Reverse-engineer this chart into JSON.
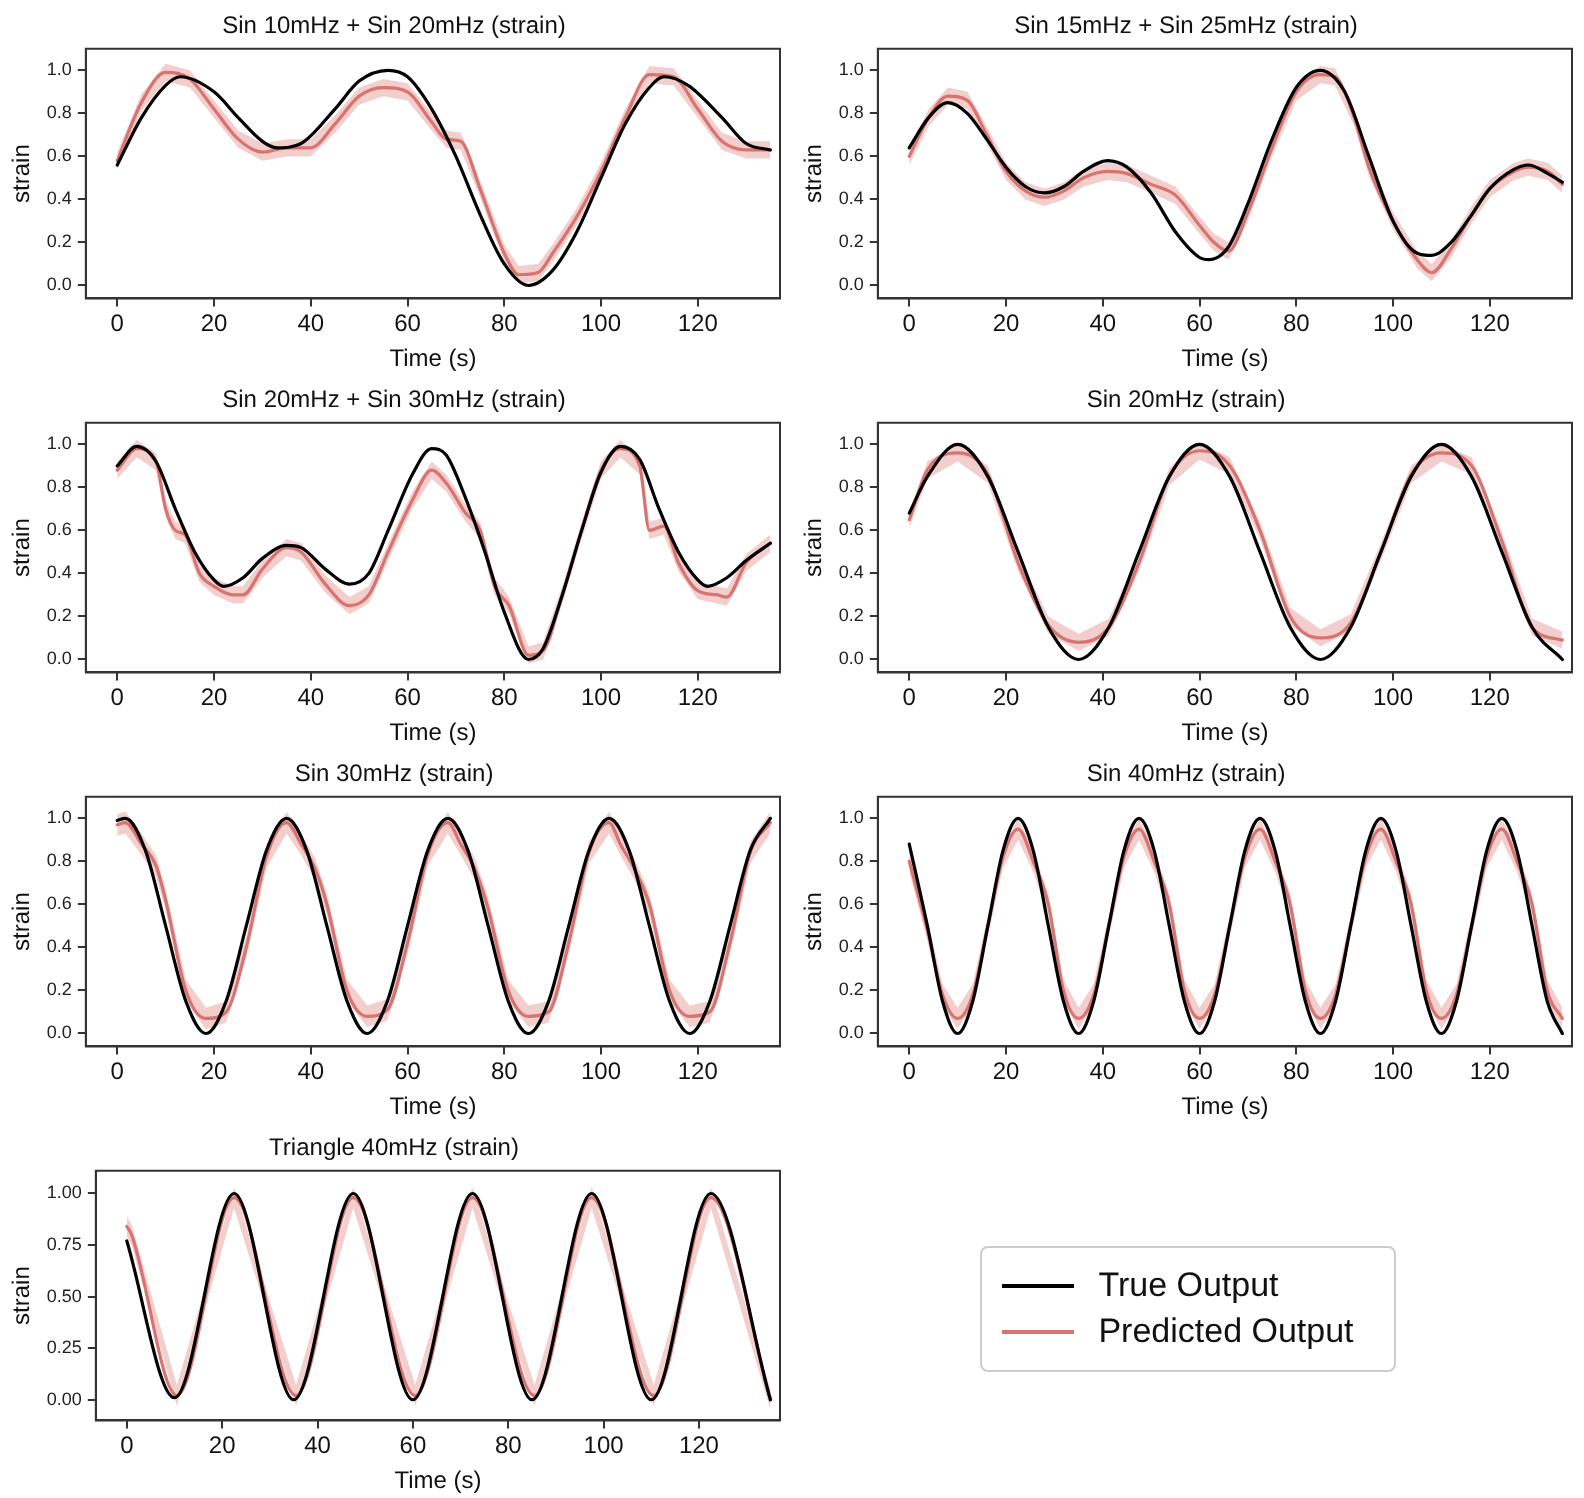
{
  "chart_data": [
    {
      "type": "line",
      "title": "Sin 10mHz + Sin 20mHz (strain)",
      "xlabel": "Time (s)",
      "ylabel": "strain",
      "xlim": [
        -6.5,
        137
      ],
      "ylim": [
        -0.06,
        1.1
      ],
      "xticks": [
        0,
        20,
        40,
        60,
        80,
        100,
        120
      ],
      "yticks": [
        {
          "value": 0,
          "label": "0.0"
        },
        0.2,
        0.4,
        0.6,
        0.8,
        {
          "value": 1,
          "label": "1.0"
        }
      ],
      "series": [
        {
          "color": "#000000",
          "x": [
            0,
            5,
            10,
            13,
            20,
            25,
            30,
            33,
            38,
            45,
            50,
            56,
            60,
            65,
            70,
            75,
            80,
            85,
            90,
            95,
            100,
            105,
            110,
            113,
            118,
            125,
            130,
            135
          ],
          "values": [
            0.56,
            0.78,
            0.93,
            0.97,
            0.9,
            0.78,
            0.67,
            0.64,
            0.66,
            0.82,
            0.95,
            1.0,
            0.97,
            0.82,
            0.6,
            0.33,
            0.1,
            0.0,
            0.07,
            0.25,
            0.5,
            0.75,
            0.92,
            0.97,
            0.93,
            0.78,
            0.66,
            0.63
          ]
        },
        {
          "color": "#d9736f",
          "x": [
            0,
            5,
            10,
            15,
            20,
            25,
            30,
            35,
            40,
            45,
            50,
            55,
            60,
            65,
            68,
            71,
            75,
            80,
            83,
            87,
            90,
            95,
            100,
            105,
            110,
            115,
            120,
            125,
            130,
            135
          ],
          "values": [
            0.58,
            0.85,
            0.99,
            0.96,
            0.82,
            0.68,
            0.62,
            0.64,
            0.64,
            0.75,
            0.88,
            0.92,
            0.9,
            0.76,
            0.68,
            0.67,
            0.45,
            0.15,
            0.05,
            0.06,
            0.15,
            0.32,
            0.53,
            0.78,
            0.98,
            0.97,
            0.82,
            0.67,
            0.63,
            0.63
          ],
          "lower": [
            0.54,
            0.81,
            0.95,
            0.92,
            0.78,
            0.64,
            0.58,
            0.6,
            0.6,
            0.71,
            0.84,
            0.88,
            0.86,
            0.72,
            0.64,
            0.63,
            0.41,
            0.11,
            0.01,
            0.02,
            0.11,
            0.28,
            0.49,
            0.74,
            0.94,
            0.93,
            0.78,
            0.63,
            0.59,
            0.59
          ],
          "upper": [
            0.62,
            0.89,
            1.03,
            1.0,
            0.86,
            0.72,
            0.66,
            0.68,
            0.68,
            0.79,
            0.92,
            0.96,
            0.94,
            0.8,
            0.72,
            0.71,
            0.49,
            0.19,
            0.09,
            0.1,
            0.19,
            0.36,
            0.57,
            0.82,
            1.02,
            1.01,
            0.86,
            0.71,
            0.67,
            0.67
          ]
        }
      ]
    },
    {
      "type": "line",
      "title": "Sin 15mHz + Sin 25mHz (strain)",
      "xlabel": "Time (s)",
      "ylabel": "strain",
      "xlim": [
        -6.5,
        137
      ],
      "ylim": [
        -0.06,
        1.1
      ],
      "xticks": [
        0,
        20,
        40,
        60,
        80,
        100,
        120
      ],
      "yticks": [
        {
          "value": 0,
          "label": "0.0"
        },
        0.2,
        0.4,
        0.6,
        0.8,
        {
          "value": 1,
          "label": "1.0"
        }
      ],
      "series": [
        {
          "color": "#000000",
          "x": [
            0,
            4,
            8,
            12,
            16,
            20,
            24,
            28,
            32,
            36,
            41,
            45,
            50,
            55,
            60,
            62,
            66,
            70,
            75,
            80,
            85,
            90,
            95,
            100,
            105,
            108,
            112,
            116,
            120,
            125,
            128,
            132,
            135
          ],
          "values": [
            0.64,
            0.78,
            0.85,
            0.8,
            0.68,
            0.55,
            0.46,
            0.43,
            0.46,
            0.53,
            0.58,
            0.55,
            0.43,
            0.25,
            0.13,
            0.12,
            0.18,
            0.38,
            0.68,
            0.92,
            1.0,
            0.9,
            0.6,
            0.3,
            0.15,
            0.14,
            0.2,
            0.32,
            0.45,
            0.54,
            0.56,
            0.52,
            0.48
          ]
        },
        {
          "color": "#d9736f",
          "x": [
            0,
            4,
            8,
            12,
            16,
            20,
            24,
            28,
            32,
            36,
            41,
            45,
            50,
            55,
            60,
            63,
            66,
            70,
            75,
            80,
            85,
            88,
            92,
            95,
            100,
            105,
            108,
            112,
            116,
            120,
            125,
            128,
            132,
            135
          ],
          "values": [
            0.6,
            0.78,
            0.88,
            0.86,
            0.7,
            0.53,
            0.44,
            0.41,
            0.44,
            0.5,
            0.53,
            0.52,
            0.47,
            0.42,
            0.28,
            0.2,
            0.16,
            0.34,
            0.64,
            0.9,
            0.98,
            0.97,
            0.78,
            0.55,
            0.3,
            0.12,
            0.06,
            0.17,
            0.32,
            0.45,
            0.53,
            0.55,
            0.53,
            0.47
          ],
          "lower": [
            0.56,
            0.74,
            0.84,
            0.82,
            0.66,
            0.49,
            0.4,
            0.37,
            0.4,
            0.46,
            0.49,
            0.48,
            0.43,
            0.38,
            0.24,
            0.16,
            0.12,
            0.3,
            0.6,
            0.86,
            0.94,
            0.93,
            0.74,
            0.51,
            0.26,
            0.08,
            0.02,
            0.13,
            0.28,
            0.41,
            0.49,
            0.51,
            0.49,
            0.43
          ],
          "upper": [
            0.64,
            0.82,
            0.92,
            0.9,
            0.74,
            0.57,
            0.48,
            0.45,
            0.48,
            0.54,
            0.57,
            0.56,
            0.51,
            0.46,
            0.32,
            0.24,
            0.2,
            0.38,
            0.68,
            0.94,
            1.02,
            1.01,
            0.82,
            0.59,
            0.34,
            0.16,
            0.1,
            0.21,
            0.36,
            0.49,
            0.57,
            0.59,
            0.57,
            0.51
          ]
        }
      ]
    },
    {
      "type": "line",
      "title": "Sin 20mHz + Sin 30mHz (strain)",
      "xlabel": "Time (s)",
      "ylabel": "strain",
      "xlim": [
        -6.5,
        137
      ],
      "ylim": [
        -0.06,
        1.1
      ],
      "xticks": [
        0,
        20,
        40,
        60,
        80,
        100,
        120
      ],
      "yticks": [
        {
          "value": 0,
          "label": "0.0"
        },
        0.2,
        0.4,
        0.6,
        0.8,
        {
          "value": 1,
          "label": "1.0"
        }
      ],
      "series": [
        {
          "color": "#000000",
          "x": [
            0,
            4,
            8,
            12,
            16,
            20,
            22,
            26,
            30,
            35,
            38,
            43,
            48,
            52,
            56,
            61,
            65,
            68,
            72,
            76,
            80,
            85,
            88,
            92,
            96,
            100,
            104,
            108,
            112,
            116,
            120,
            122,
            126,
            130,
            135
          ],
          "values": [
            0.9,
            0.99,
            0.92,
            0.7,
            0.5,
            0.37,
            0.34,
            0.38,
            0.47,
            0.53,
            0.52,
            0.42,
            0.35,
            0.4,
            0.6,
            0.86,
            0.98,
            0.95,
            0.75,
            0.5,
            0.22,
            0.0,
            0.05,
            0.3,
            0.6,
            0.87,
            0.99,
            0.93,
            0.7,
            0.5,
            0.37,
            0.34,
            0.38,
            0.46,
            0.54
          ]
        },
        {
          "color": "#d9736f",
          "x": [
            0,
            4,
            8,
            10,
            12,
            14,
            17,
            20,
            24,
            26,
            30,
            35,
            38,
            43,
            48,
            52,
            56,
            61,
            65,
            68,
            72,
            75,
            78,
            81,
            85,
            88,
            92,
            96,
            100,
            104,
            108,
            110,
            113,
            116,
            120,
            124,
            126,
            130,
            135
          ],
          "values": [
            0.88,
            0.98,
            0.92,
            0.7,
            0.6,
            0.58,
            0.4,
            0.34,
            0.3,
            0.3,
            0.42,
            0.52,
            0.5,
            0.35,
            0.25,
            0.3,
            0.5,
            0.74,
            0.88,
            0.82,
            0.68,
            0.6,
            0.34,
            0.25,
            0.02,
            0.04,
            0.3,
            0.6,
            0.88,
            0.98,
            0.9,
            0.6,
            0.62,
            0.45,
            0.32,
            0.3,
            0.29,
            0.45,
            0.54
          ],
          "lower": [
            0.84,
            0.94,
            0.88,
            0.66,
            0.56,
            0.54,
            0.36,
            0.3,
            0.26,
            0.26,
            0.38,
            0.48,
            0.46,
            0.31,
            0.21,
            0.26,
            0.46,
            0.7,
            0.84,
            0.78,
            0.64,
            0.56,
            0.3,
            0.21,
            -0.02,
            0,
            0.26,
            0.56,
            0.84,
            0.94,
            0.86,
            0.56,
            0.58,
            0.41,
            0.28,
            0.26,
            0.25,
            0.41,
            0.5
          ],
          "upper": [
            0.92,
            1.02,
            0.96,
            0.74,
            0.64,
            0.62,
            0.44,
            0.38,
            0.34,
            0.34,
            0.46,
            0.56,
            0.54,
            0.39,
            0.29,
            0.34,
            0.54,
            0.78,
            0.92,
            0.86,
            0.72,
            0.64,
            0.38,
            0.29,
            0.06,
            0.08,
            0.34,
            0.64,
            0.92,
            1.02,
            0.94,
            0.64,
            0.66,
            0.49,
            0.36,
            0.34,
            0.33,
            0.49,
            0.58
          ]
        }
      ]
    },
    {
      "type": "line",
      "title": "Sin 20mHz (strain)",
      "xlabel": "Time (s)",
      "ylabel": "strain",
      "xlim": [
        -6.5,
        137
      ],
      "ylim": [
        -0.06,
        1.1
      ],
      "xticks": [
        0,
        20,
        40,
        60,
        80,
        100,
        120
      ],
      "yticks": [
        {
          "value": 0,
          "label": "0.0"
        },
        0.2,
        0.4,
        0.6,
        0.8,
        {
          "value": 1,
          "label": "1.0"
        }
      ],
      "series": [
        {
          "color": "#000000",
          "x": [
            0,
            3.75,
            10,
            16.25,
            22.5,
            28.75,
            35,
            41.25,
            47.5,
            53.75,
            60,
            66.25,
            72.5,
            78.75,
            85,
            91.25,
            97.5,
            103.75,
            110,
            116.25,
            122.5,
            128.75,
            135
          ],
          "values": [
            0.68,
            0.85,
            1,
            0.85,
            0.5,
            0.15,
            0,
            0.15,
            0.5,
            0.85,
            1,
            0.85,
            0.5,
            0.15,
            0,
            0.15,
            0.5,
            0.85,
            1,
            0.85,
            0.5,
            0.15,
            0
          ]
        },
        {
          "color": "#d9736f",
          "x": [
            0,
            3.75,
            10,
            16.25,
            22.5,
            28.75,
            35,
            41.25,
            47.5,
            53.75,
            60,
            66.25,
            72.5,
            78.75,
            85,
            91.25,
            97.5,
            103.75,
            110,
            116.25,
            122.5,
            128.75,
            135
          ],
          "values": [
            0.65,
            0.88,
            0.96,
            0.86,
            0.45,
            0.16,
            0.08,
            0.15,
            0.45,
            0.85,
            0.97,
            0.9,
            0.6,
            0.2,
            0.1,
            0.17,
            0.5,
            0.86,
            0.96,
            0.9,
            0.55,
            0.15,
            0.09
          ],
          "lower": [
            0.61,
            0.84,
            0.92,
            0.82,
            0.41,
            0.12,
            0.04,
            0.11,
            0.41,
            0.81,
            0.93,
            0.86,
            0.56,
            0.16,
            0.06,
            0.13,
            0.46,
            0.82,
            0.92,
            0.86,
            0.51,
            0.11,
            0.05
          ],
          "upper": [
            0.69,
            0.92,
            1.0,
            0.9,
            0.49,
            0.2,
            0.12,
            0.19,
            0.49,
            0.89,
            1.01,
            0.94,
            0.64,
            0.24,
            0.14,
            0.21,
            0.54,
            0.9,
            1.0,
            0.94,
            0.59,
            0.19,
            0.13
          ]
        }
      ]
    },
    {
      "type": "line",
      "title": "Sin 30mHz (strain)",
      "xlabel": "Time (s)",
      "ylabel": "strain",
      "xlim": [
        -6.5,
        137
      ],
      "ylim": [
        -0.06,
        1.1
      ],
      "xticks": [
        0,
        20,
        40,
        60,
        80,
        100,
        120
      ],
      "yticks": [
        {
          "value": 0,
          "label": "0.0"
        },
        0.2,
        0.4,
        0.6,
        0.8,
        {
          "value": 1,
          "label": "1.0"
        }
      ],
      "series": [
        {
          "color": "#000000",
          "x": [
            0,
            1.67,
            5.83,
            10,
            14.17,
            18.33,
            22.5,
            26.67,
            30.83,
            35,
            39.17,
            43.33,
            47.5,
            51.67,
            55.83,
            60,
            64.17,
            68.33,
            72.5,
            76.67,
            80.83,
            85,
            89.17,
            93.33,
            97.5,
            101.67,
            105.83,
            110,
            114.17,
            118.33,
            122.5,
            126.67,
            130.83,
            135
          ],
          "values": [
            0.99,
            1,
            0.85,
            0.5,
            0.15,
            0,
            0.15,
            0.5,
            0.85,
            1,
            0.85,
            0.5,
            0.15,
            0,
            0.15,
            0.5,
            0.85,
            1,
            0.85,
            0.5,
            0.15,
            0,
            0.15,
            0.5,
            0.85,
            1,
            0.85,
            0.5,
            0.15,
            0,
            0.15,
            0.5,
            0.85,
            1
          ]
        },
        {
          "color": "#d9736f",
          "x": [
            0,
            1.67,
            5,
            8,
            10,
            14.17,
            18.33,
            22.5,
            26.67,
            30.83,
            35,
            38,
            41,
            43.33,
            47.5,
            51.67,
            55.83,
            60,
            64.17,
            68.33,
            71,
            74,
            76.67,
            80.83,
            85,
            89.17,
            93.33,
            97.5,
            101.67,
            104,
            107,
            110,
            114.17,
            118.33,
            122.5,
            126.67,
            130.83,
            135
          ],
          "values": [
            0.97,
            0.98,
            0.88,
            0.78,
            0.62,
            0.2,
            0.07,
            0.1,
            0.4,
            0.82,
            0.98,
            0.88,
            0.76,
            0.6,
            0.2,
            0.08,
            0.11,
            0.42,
            0.83,
            0.98,
            0.88,
            0.76,
            0.58,
            0.2,
            0.08,
            0.1,
            0.42,
            0.84,
            0.98,
            0.88,
            0.76,
            0.6,
            0.2,
            0.08,
            0.1,
            0.42,
            0.84,
            0.98
          ],
          "lower": [
            0.92,
            0.93,
            0.83,
            0.73,
            0.57,
            0.15,
            0.02,
            0.05,
            0.35,
            0.77,
            0.93,
            0.83,
            0.71,
            0.55,
            0.15,
            0.03,
            0.06,
            0.37,
            0.78,
            0.93,
            0.83,
            0.71,
            0.53,
            0.15,
            0.03,
            0.05,
            0.37,
            0.79,
            0.93,
            0.83,
            0.71,
            0.55,
            0.15,
            0.03,
            0.05,
            0.37,
            0.79,
            0.93
          ],
          "upper": [
            1.02,
            1.03,
            0.93,
            0.83,
            0.67,
            0.25,
            0.12,
            0.15,
            0.45,
            0.87,
            1.03,
            0.93,
            0.81,
            0.65,
            0.25,
            0.13,
            0.16,
            0.47,
            0.88,
            1.03,
            0.93,
            0.81,
            0.63,
            0.25,
            0.13,
            0.15,
            0.47,
            0.89,
            1.03,
            0.93,
            0.81,
            0.65,
            0.25,
            0.13,
            0.15,
            0.47,
            0.89,
            1.03
          ]
        }
      ]
    },
    {
      "type": "line",
      "title": "Sin 40mHz (strain)",
      "xlabel": "Time (s)",
      "ylabel": "strain",
      "xlim": [
        -6.5,
        137
      ],
      "ylim": [
        -0.06,
        1.1
      ],
      "xticks": [
        0,
        20,
        40,
        60,
        80,
        100,
        120
      ],
      "yticks": [
        {
          "value": 0,
          "label": "0.0"
        },
        0.2,
        0.4,
        0.6,
        0.8,
        {
          "value": 1,
          "label": "1.0"
        }
      ],
      "series": [
        {
          "color": "#000000",
          "x": [
            0,
            3.75,
            6.875,
            10,
            13.125,
            16.25,
            19.375,
            22.5,
            25.625,
            28.75,
            31.875,
            35,
            38.125,
            41.25,
            44.375,
            47.5,
            50.625,
            53.75,
            56.875,
            60,
            63.125,
            66.25,
            69.375,
            72.5,
            75.625,
            78.75,
            81.875,
            85,
            88.125,
            91.25,
            94.375,
            97.5,
            100.625,
            103.75,
            106.875,
            110,
            113.125,
            116.25,
            119.375,
            122.5,
            125.625,
            128.75,
            131.875,
            135
          ],
          "values": [
            0.88,
            0.5,
            0.15,
            0,
            0.15,
            0.5,
            0.85,
            1,
            0.85,
            0.5,
            0.15,
            0,
            0.15,
            0.5,
            0.85,
            1,
            0.85,
            0.5,
            0.15,
            0,
            0.15,
            0.5,
            0.85,
            1,
            0.85,
            0.5,
            0.15,
            0,
            0.15,
            0.5,
            0.85,
            1,
            0.85,
            0.5,
            0.15,
            0,
            0.15,
            0.5,
            0.85,
            1,
            0.85,
            0.5,
            0.15,
            0
          ]
        },
        {
          "color": "#d9736f",
          "x": [
            0,
            3.75,
            6.875,
            10,
            13.125,
            16.25,
            19.375,
            22.5,
            25.625,
            28.75,
            31.875,
            35,
            38.125,
            41.25,
            44.375,
            47.5,
            50.625,
            53.75,
            56.875,
            60,
            63.125,
            66.25,
            69.375,
            72.5,
            75.625,
            78.75,
            81.875,
            85,
            88.125,
            91.25,
            94.375,
            97.5,
            100.625,
            103.75,
            106.875,
            110,
            113.125,
            116.25,
            119.375,
            122.5,
            125.625,
            128.75,
            131.875,
            135
          ],
          "values": [
            0.8,
            0.48,
            0.18,
            0.07,
            0.18,
            0.5,
            0.82,
            0.95,
            0.8,
            0.6,
            0.2,
            0.07,
            0.18,
            0.5,
            0.82,
            0.95,
            0.8,
            0.6,
            0.2,
            0.07,
            0.18,
            0.5,
            0.82,
            0.95,
            0.8,
            0.6,
            0.2,
            0.07,
            0.18,
            0.5,
            0.82,
            0.95,
            0.8,
            0.6,
            0.2,
            0.07,
            0.18,
            0.5,
            0.82,
            0.95,
            0.8,
            0.6,
            0.2,
            0.07
          ],
          "lower": [
            0.75,
            0.43,
            0.13,
            0.02,
            0.13,
            0.45,
            0.77,
            0.9,
            0.75,
            0.55,
            0.15,
            0.02,
            0.13,
            0.45,
            0.77,
            0.9,
            0.75,
            0.55,
            0.15,
            0.02,
            0.13,
            0.45,
            0.77,
            0.9,
            0.75,
            0.55,
            0.15,
            0.02,
            0.13,
            0.45,
            0.77,
            0.9,
            0.75,
            0.55,
            0.15,
            0.02,
            0.13,
            0.45,
            0.77,
            0.9,
            0.75,
            0.55,
            0.15,
            0.02
          ],
          "upper": [
            0.85,
            0.53,
            0.23,
            0.12,
            0.23,
            0.55,
            0.87,
            1.0,
            0.85,
            0.65,
            0.25,
            0.12,
            0.23,
            0.55,
            0.87,
            1.0,
            0.85,
            0.65,
            0.25,
            0.12,
            0.23,
            0.55,
            0.87,
            1.0,
            0.85,
            0.65,
            0.25,
            0.12,
            0.23,
            0.55,
            0.87,
            1.0,
            0.85,
            0.65,
            0.25,
            0.12,
            0.23,
            0.55,
            0.87,
            1.0,
            0.85,
            0.65,
            0.25,
            0.12
          ]
        }
      ]
    },
    {
      "type": "line",
      "title": "Triangle 40mHz (strain)",
      "xlabel": "Time (s)",
      "ylabel": "strain",
      "xlim": [
        -6.5,
        137
      ],
      "ylim": [
        -0.1,
        1.11
      ],
      "xticks": [
        0,
        20,
        40,
        60,
        80,
        100,
        120
      ],
      "yticks": [
        {
          "value": 0,
          "label": "0.00"
        },
        {
          "value": 0.25,
          "label": "0.25"
        },
        {
          "value": 0.5,
          "label": "0.50"
        },
        {
          "value": 0.75,
          "label": "0.75"
        },
        {
          "value": 1,
          "label": "1.00"
        }
      ],
      "legend": "right",
      "series": [
        {
          "name": "True Output",
          "color": "#000000",
          "x": [
            0,
            10,
            22.5,
            35,
            47.5,
            60,
            72.5,
            85,
            97.5,
            110,
            122.5,
            135
          ],
          "values": [
            0.77,
            0.01,
            1,
            0,
            1,
            0,
            1,
            0,
            1,
            0,
            1,
            0
          ]
        },
        {
          "name": "Predicted Output",
          "color": "#d9736f",
          "x": [
            0,
            1,
            10.5,
            22.5,
            35.5,
            47.5,
            60.5,
            72.5,
            85.5,
            97.5,
            110.5,
            122.5,
            135
          ],
          "values": [
            0.84,
            0.8,
            0.02,
            0.98,
            0.02,
            0.98,
            0.02,
            0.98,
            0.02,
            0.98,
            0.02,
            0.98,
            0.0
          ],
          "lower": [
            0.79,
            0.75,
            -0.03,
            0.93,
            -0.03,
            0.93,
            -0.03,
            0.93,
            -0.03,
            0.93,
            -0.03,
            0.93,
            -0.05
          ],
          "upper": [
            0.89,
            0.85,
            0.07,
            1.03,
            0.07,
            1.03,
            0.07,
            1.03,
            0.07,
            1.03,
            0.07,
            1.03,
            0.05
          ]
        }
      ]
    }
  ]
}
